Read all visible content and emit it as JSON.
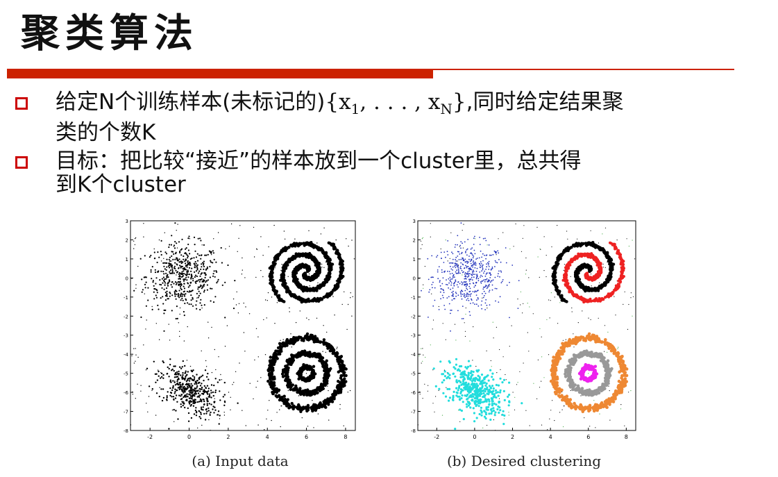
{
  "slide": {
    "title": "聚类算法",
    "bullets": [
      {
        "line1_pre": "给定N个训练样本(未标记的)",
        "math_open": "{x",
        "math_sub1": "1",
        "math_mid": ", . . . , x",
        "math_subN": "N",
        "math_close": "}",
        "line1_post": ",同时给定结果聚",
        "line2": "类的个数K"
      },
      {
        "line1": "目标：把比较“接近”的样本放到一个cluster里，总共得",
        "line2": "到K个cluster"
      }
    ]
  },
  "colors": {
    "accent": "#cc2200",
    "bullet": "#cc0000",
    "black": "#000000",
    "blue": "#2233bb",
    "red": "#ee2222",
    "cyan": "#22dddd",
    "gray": "#999999",
    "orange": "#ee8833",
    "magenta": "#ee22ee",
    "green": "#44aa44"
  },
  "figures": [
    {
      "caption": "(a) Input data",
      "x_ticks": [
        "-2",
        "0",
        "2",
        "4",
        "6",
        "8"
      ],
      "y_ticks": [
        "3",
        "2",
        "1",
        "0",
        "-1",
        "-2",
        "-3",
        "-4",
        "-5",
        "-6",
        "-7",
        "-8"
      ],
      "xlim": [
        -3,
        8.5
      ],
      "ylim": [
        -8,
        3
      ]
    },
    {
      "caption": "(b) Desired clustering",
      "x_ticks": [
        "-2",
        "0",
        "2",
        "4",
        "6",
        "8"
      ],
      "y_ticks": [
        "3",
        "2",
        "1",
        "0",
        "-1",
        "-2",
        "-3",
        "-4",
        "-5",
        "-6",
        "-7",
        "-8"
      ],
      "xlim": [
        -3,
        8.5
      ],
      "ylim": [
        -8,
        3
      ]
    }
  ]
}
